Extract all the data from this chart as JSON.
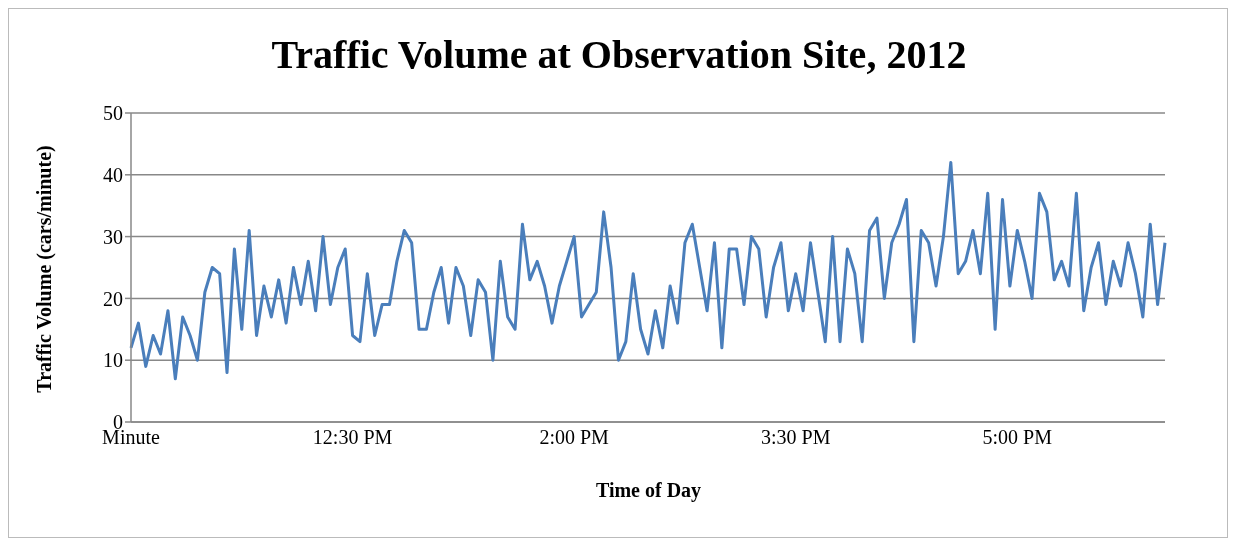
{
  "chart_data": {
    "type": "line",
    "title": "Traffic Volume at Observation Site, 2012",
    "xlabel": "Time of Day",
    "ylabel": "Traffic Volume (cars/minute)",
    "categories": [
      "Minute",
      null,
      null,
      null,
      null,
      null,
      null,
      null,
      null,
      null,
      null,
      null,
      null,
      null,
      null,
      null,
      null,
      null,
      null,
      null,
      null,
      null,
      null,
      null,
      null,
      null,
      null,
      null,
      null,
      null,
      "12:30 PM",
      null,
      null,
      null,
      null,
      null,
      null,
      null,
      null,
      null,
      null,
      null,
      null,
      null,
      null,
      null,
      null,
      null,
      null,
      null,
      null,
      null,
      null,
      null,
      null,
      null,
      null,
      null,
      null,
      null,
      "2:00 PM",
      null,
      null,
      null,
      null,
      null,
      null,
      null,
      null,
      null,
      null,
      null,
      null,
      null,
      null,
      null,
      null,
      null,
      null,
      null,
      null,
      null,
      null,
      null,
      null,
      null,
      null,
      null,
      null,
      null,
      "3:30 PM",
      null,
      null,
      null,
      null,
      null,
      null,
      null,
      null,
      null,
      null,
      null,
      null,
      null,
      null,
      null,
      null,
      null,
      null,
      null,
      null,
      null,
      null,
      null,
      null,
      null,
      null,
      null,
      null,
      null,
      "5:00 PM",
      null,
      null,
      null,
      null,
      null,
      null,
      null,
      null,
      null,
      null,
      null,
      null,
      null,
      null,
      null,
      null,
      null,
      null,
      null,
      null
    ],
    "series": [
      {
        "color": "#4a7ebb",
        "values": [
          12,
          16,
          9,
          14,
          11,
          18,
          7,
          17,
          14,
          10,
          21,
          25,
          24,
          8,
          28,
          15,
          31,
          14,
          22,
          17,
          23,
          16,
          25,
          19,
          26,
          18,
          30,
          19,
          25,
          28,
          14,
          13,
          24,
          14,
          19,
          19,
          26,
          31,
          29,
          15,
          15,
          21,
          25,
          16,
          25,
          22,
          14,
          23,
          21,
          10,
          26,
          17,
          15,
          32,
          23,
          26,
          22,
          16,
          22,
          26,
          30,
          17,
          19,
          21,
          34,
          25,
          10,
          13,
          24,
          15,
          11,
          18,
          12,
          22,
          16,
          29,
          32,
          25,
          18,
          29,
          12,
          28,
          28,
          19,
          30,
          28,
          17,
          25,
          29,
          18,
          24,
          18,
          29,
          21,
          13,
          30,
          13,
          28,
          24,
          13,
          31,
          33,
          20,
          29,
          32,
          36,
          13,
          31,
          29,
          22,
          30,
          42,
          24,
          26,
          31,
          24,
          37,
          15,
          36,
          22,
          31,
          26,
          20,
          37,
          34,
          23,
          26,
          22,
          37,
          18,
          25,
          29,
          19,
          26,
          22,
          29,
          24,
          17,
          32,
          19,
          29
        ]
      }
    ],
    "ylim": [
      0,
      50
    ],
    "yticks": [
      0,
      10,
      20,
      30,
      40,
      50
    ],
    "grid": "y",
    "marker": "none",
    "line_style": "solid"
  }
}
